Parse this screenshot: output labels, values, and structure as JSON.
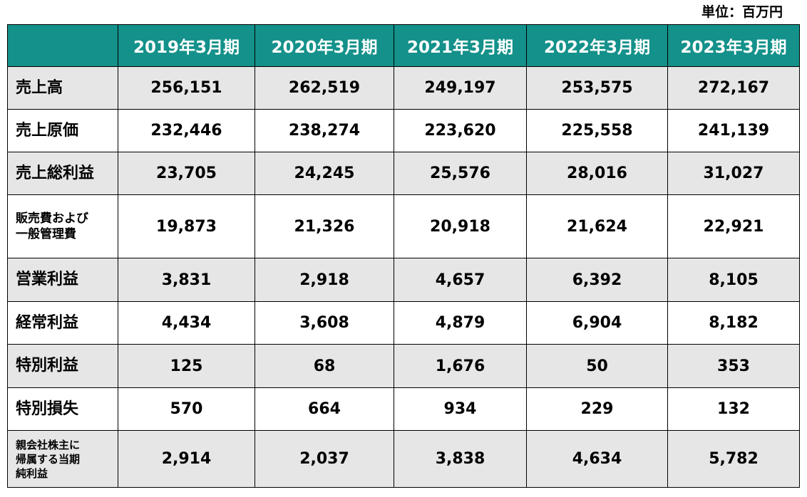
{
  "unit_label": "単位：百万円",
  "columns": [
    "2019年3月期",
    "2020年3月期",
    "2021年3月期",
    "2022年3月期",
    "2023年3月期"
  ],
  "rows": [
    {
      "label": [
        "売上高"
      ],
      "values": [
        "256,151",
        "262,519",
        "249,197",
        "253,575",
        "272,167"
      ]
    },
    {
      "label": [
        "売上原価"
      ],
      "values": [
        "232,446",
        "238,274",
        "223,620",
        "225,558",
        "241,139"
      ]
    },
    {
      "label": [
        "売上総利益"
      ],
      "values": [
        "23,705",
        "24,245",
        "25,576",
        "28,016",
        "31,027"
      ]
    },
    {
      "label": [
        "販売費および",
        "一般管理費"
      ],
      "values": [
        "19,873",
        "21,326",
        "20,918",
        "21,624",
        "22,921"
      ]
    },
    {
      "label": [
        "営業利益"
      ],
      "values": [
        "3,831",
        "2,918",
        "4,657",
        "6,392",
        "8,105"
      ]
    },
    {
      "label": [
        "経常利益"
      ],
      "values": [
        "4,434",
        "3,608",
        "4,879",
        "6,904",
        "8,182"
      ]
    },
    {
      "label": [
        "特別利益"
      ],
      "values": [
        "125",
        "68",
        "1,676",
        "50",
        "353"
      ]
    },
    {
      "label": [
        "特別損失"
      ],
      "values": [
        "570",
        "664",
        "934",
        "229",
        "132"
      ]
    },
    {
      "label": [
        "親会社株主に",
        "帰属する当期",
        "純利益"
      ],
      "values": [
        "2,914",
        "2,037",
        "3,838",
        "4,634",
        "5,782"
      ]
    }
  ],
  "colors": {
    "header_bg": "#13918a",
    "header_text": "#ffffff",
    "row_shade": "#e6e6e6",
    "row_plain": "#ffffff",
    "border": "#000000"
  }
}
